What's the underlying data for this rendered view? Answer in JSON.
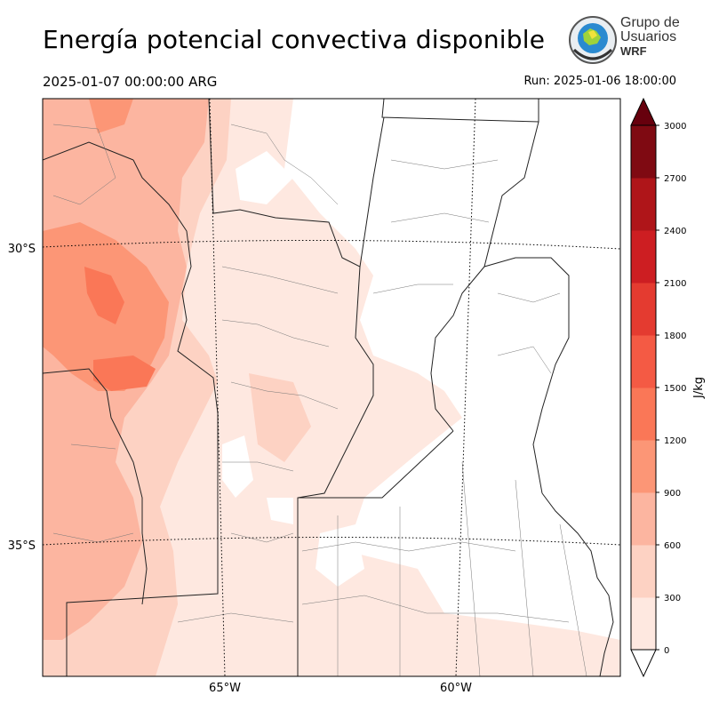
{
  "header": {
    "title": "Energía potencial convectiva disponible",
    "valid_time": "2025-01-07 00:00:00 ARG",
    "run_time": "Run: 2025-01-06 18:00:00"
  },
  "logo": {
    "line1": "Grupo de",
    "line2": "Usuarios",
    "line3": "WRF"
  },
  "map": {
    "graticule_labels": {
      "lat": [
        "30°S",
        "35°S"
      ],
      "lon": [
        "65°W",
        "60°W"
      ]
    }
  },
  "colorbar": {
    "label": "J/kg",
    "ticks": [
      "0",
      "300",
      "600",
      "900",
      "1200",
      "1500",
      "1800",
      "2100",
      "2400",
      "2700",
      "3000"
    ],
    "colors": [
      "#fee8e0",
      "#fdd2c3",
      "#fcb5a0",
      "#fc9676",
      "#fa7757",
      "#f45a44",
      "#e43b30",
      "#cd1e22",
      "#af1519",
      "#7f0a12"
    ],
    "extend_min_color": "#ffffff",
    "extend_max_color": "#67000d"
  }
}
